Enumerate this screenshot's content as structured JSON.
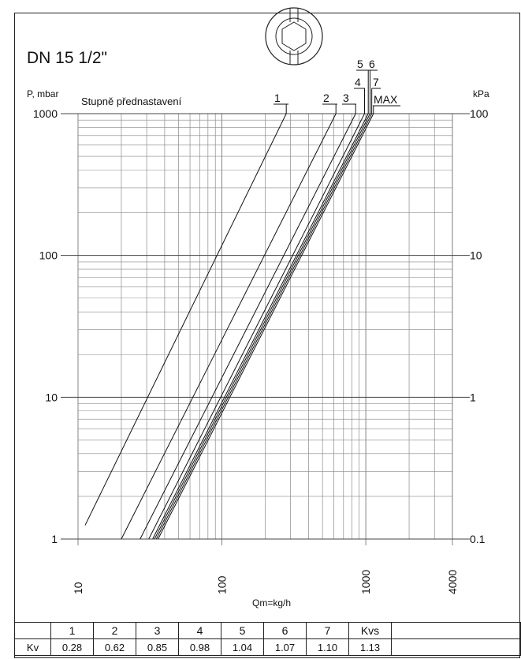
{
  "title": "DN 15 1/2\"",
  "chart_data": {
    "type": "line",
    "log_x": true,
    "log_y": true,
    "xlabel": "Qm=kg/h",
    "ylabel_left": "P, mbar",
    "ylabel_right": "kPa",
    "curve_group_label": "Stupně přednastavení",
    "xlim": [
      10,
      4000
    ],
    "ylim": [
      1,
      1000
    ],
    "x_ticks": [
      "10",
      "100",
      "1000",
      "4000"
    ],
    "y_ticks_left": [
      "1",
      "10",
      "100",
      "1000"
    ],
    "y_ticks_right": [
      "0.1",
      "1",
      "10",
      "100"
    ],
    "grid": true,
    "series": [
      {
        "name": "1",
        "kv": 0.28,
        "x": [
          11.2,
          280
        ],
        "y": [
          1.25,
          1000
        ]
      },
      {
        "name": "2",
        "kv": 0.62,
        "x": [
          20,
          620
        ],
        "y": [
          1,
          1000
        ]
      },
      {
        "name": "3",
        "kv": 0.85,
        "x": [
          27,
          850
        ],
        "y": [
          1,
          1000
        ]
      },
      {
        "name": "4",
        "kv": 0.98,
        "x": [
          31,
          980
        ],
        "y": [
          1,
          1000
        ]
      },
      {
        "name": "5",
        "kv": 1.04,
        "x": [
          33,
          1040
        ],
        "y": [
          1,
          1000
        ]
      },
      {
        "name": "6",
        "kv": 1.07,
        "x": [
          34,
          1070
        ],
        "y": [
          1,
          1000
        ]
      },
      {
        "name": "7",
        "kv": 1.1,
        "x": [
          35,
          1100
        ],
        "y": [
          1,
          1000
        ]
      },
      {
        "name": "MAX",
        "kv": 1.13,
        "x": [
          36,
          1130
        ],
        "y": [
          1,
          1000
        ]
      }
    ]
  },
  "kv_table": {
    "row_label": "Kv",
    "headers": [
      "1",
      "2",
      "3",
      "4",
      "5",
      "6",
      "7",
      "Kvs"
    ],
    "values": [
      "0.28",
      "0.62",
      "0.85",
      "0.98",
      "1.04",
      "1.07",
      "1.10",
      "1.13"
    ]
  }
}
